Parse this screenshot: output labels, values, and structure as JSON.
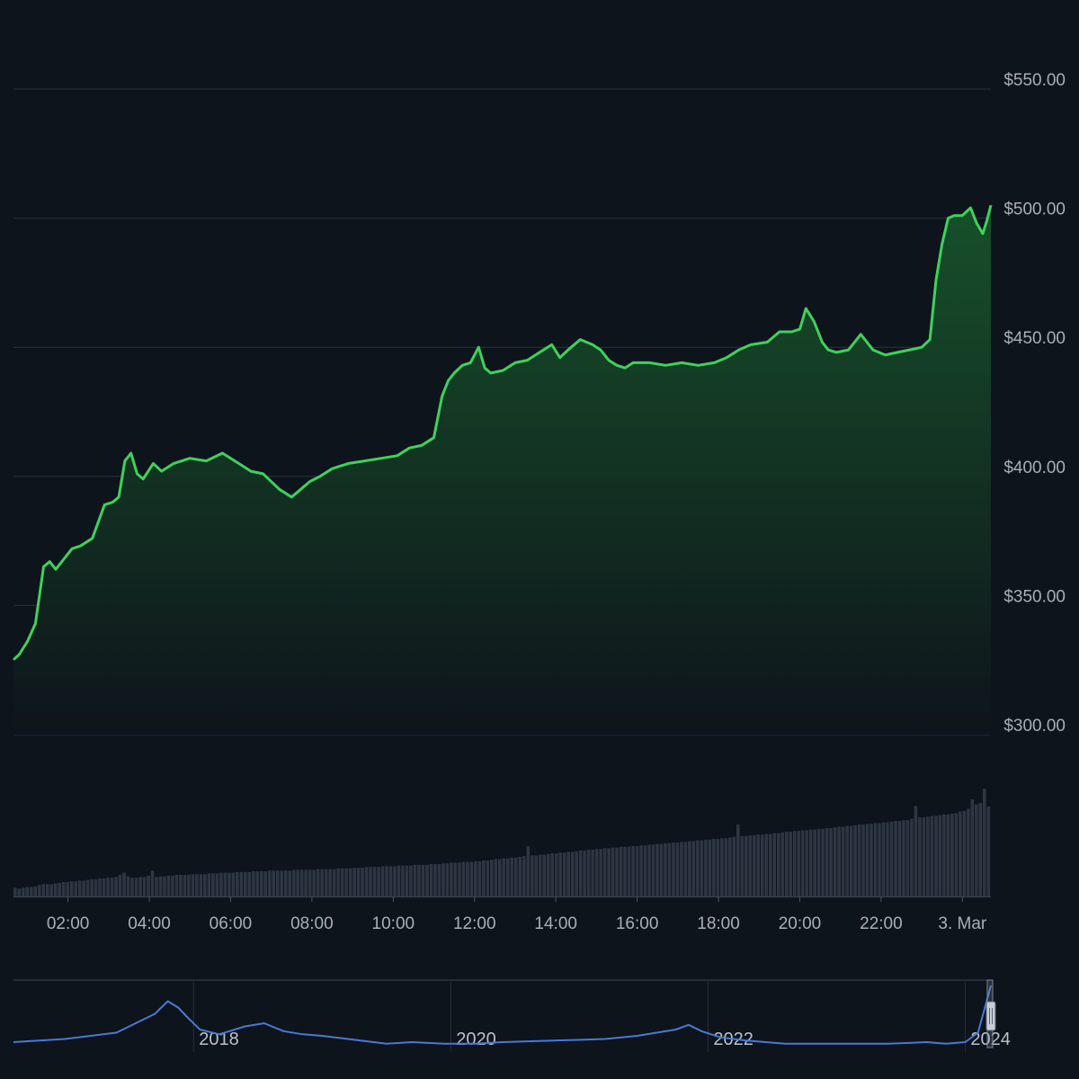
{
  "colors": {
    "background": "#0e141b",
    "price_line": "#3fd15c",
    "area_top": "#17502a",
    "area_bottom": "#0e141b",
    "gridline": "#2a323b",
    "volume_bar": "#2d3642",
    "navigator_line": "#4a78d6",
    "navigator_frame": "#3a4654",
    "axis_text": "#a7afbb"
  },
  "chart_data": [
    {
      "type": "line",
      "title": "",
      "x_tick_labels": [
        "02:00",
        "04:00",
        "06:00",
        "08:00",
        "10:00",
        "12:00",
        "14:00",
        "16:00",
        "18:00",
        "20:00",
        "22:00",
        "3. Mar"
      ],
      "y_tick_labels": [
        "$300.00",
        "$350.00",
        "$400.00",
        "$450.00",
        "$500.00",
        "$550.00"
      ],
      "y_ticks": [
        300,
        350,
        400,
        450,
        500,
        550
      ],
      "ylim": [
        300,
        550
      ],
      "xlim_hours": [
        0.66,
        24.7
      ],
      "grid": true,
      "legend": "none",
      "series": [
        {
          "x_hours": [
            0.66,
            0.8,
            1.0,
            1.2,
            1.4,
            1.55,
            1.7,
            1.9,
            2.1,
            2.3,
            2.6,
            2.9,
            3.1,
            3.25,
            3.4,
            3.55,
            3.7,
            3.85,
            4.1,
            4.3,
            4.6,
            5.0,
            5.4,
            5.8,
            6.2,
            6.5,
            6.8,
            7.2,
            7.5,
            7.8,
            7.95,
            8.2,
            8.5,
            8.9,
            9.3,
            9.7,
            10.1,
            10.4,
            10.7,
            11.0,
            11.2,
            11.35,
            11.5,
            11.7,
            11.9,
            12.1,
            12.25,
            12.4,
            12.7,
            13.0,
            13.3,
            13.6,
            13.9,
            14.1,
            14.3,
            14.6,
            14.9,
            15.1,
            15.3,
            15.5,
            15.7,
            15.9,
            16.3,
            16.7,
            17.1,
            17.5,
            17.9,
            18.2,
            18.5,
            18.8,
            19.2,
            19.5,
            19.8,
            20.0,
            20.15,
            20.35,
            20.55,
            20.7,
            20.9,
            21.2,
            21.5,
            21.8,
            22.1,
            22.4,
            22.7,
            23.0,
            23.2,
            23.35,
            23.5,
            23.65,
            23.8,
            24.0,
            24.2,
            24.35,
            24.5,
            24.6,
            24.7
          ],
          "values": [
            329,
            331,
            336,
            343,
            365,
            367,
            364,
            368,
            372,
            373,
            376,
            389,
            390,
            392,
            406,
            409,
            401,
            399,
            405,
            402,
            405,
            407,
            406,
            409,
            405,
            402,
            401,
            395,
            392,
            396,
            398,
            400,
            403,
            405,
            406,
            407,
            408,
            411,
            412,
            415,
            431,
            437,
            440,
            443,
            444,
            450,
            442,
            440,
            441,
            444,
            445,
            448,
            451,
            446,
            449,
            453,
            451,
            449,
            445,
            443,
            442,
            444,
            444,
            443,
            444,
            443,
            444,
            446,
            449,
            451,
            452,
            456,
            456,
            457,
            465,
            460,
            452,
            449,
            448,
            449,
            455,
            449,
            447,
            448,
            449,
            450,
            453,
            476,
            490,
            500,
            501,
            501,
            504,
            498,
            494,
            499,
            505
          ]
        }
      ]
    },
    {
      "type": "bar",
      "title": "",
      "series": [
        {
          "x_hours_start": 0.66,
          "x_hours_end": 24.7,
          "values": [
            12,
            11,
            12,
            13,
            13,
            14,
            16,
            17,
            17,
            17,
            18,
            19,
            20,
            20,
            21,
            21,
            22,
            22,
            23,
            24,
            24,
            25,
            25,
            26,
            26,
            27,
            30,
            33,
            28,
            26,
            26,
            27,
            27,
            29,
            36,
            27,
            28,
            28,
            29,
            29,
            30,
            30,
            30,
            30,
            31,
            31,
            31,
            31,
            32,
            32,
            32,
            33,
            33,
            33,
            33,
            34,
            34,
            34,
            34,
            35,
            35,
            35,
            35,
            36,
            36,
            36,
            36,
            36,
            36,
            37,
            37,
            37,
            37,
            37,
            37,
            38,
            38,
            38,
            38,
            38,
            39,
            39,
            39,
            39,
            40,
            40,
            40,
            41,
            41,
            41,
            41,
            42,
            42,
            42,
            42,
            43,
            43,
            43,
            43,
            44,
            44,
            44,
            44,
            45,
            45,
            45,
            46,
            46,
            47,
            47,
            47,
            48,
            48,
            48,
            49,
            49,
            50,
            50,
            51,
            52,
            52,
            53,
            53,
            54,
            54,
            55,
            56,
            70,
            57,
            57,
            58,
            58,
            59,
            60,
            60,
            61,
            61,
            62,
            62,
            63,
            64,
            64,
            65,
            65,
            66,
            66,
            67,
            67,
            68,
            68,
            69,
            69,
            69,
            70,
            70,
            71,
            71,
            72,
            72,
            73,
            73,
            74,
            74,
            75,
            75,
            76,
            76,
            77,
            77,
            78,
            78,
            79,
            79,
            80,
            80,
            81,
            81,
            82,
            83,
            100,
            84,
            84,
            85,
            85,
            86,
            86,
            87,
            87,
            88,
            88,
            89,
            90,
            90,
            91,
            91,
            92,
            92,
            93,
            93,
            94,
            94,
            95,
            95,
            96,
            97,
            97,
            98,
            98,
            99,
            100,
            100,
            101,
            101,
            102,
            102,
            103,
            103,
            104,
            105,
            105,
            106,
            106,
            108,
            126,
            110,
            110,
            111,
            112,
            112,
            113,
            114,
            114,
            115,
            116,
            118,
            119,
            122,
            135,
            128,
            130,
            150,
            125
          ]
        }
      ]
    },
    {
      "type": "area",
      "title": "",
      "x_tick_labels": [
        "2018",
        "2020",
        "2022",
        "2024"
      ],
      "x_ticks": [
        2018,
        2020,
        2022,
        2024
      ],
      "xlim": [
        2016.6,
        2024.2
      ],
      "series": [
        {
          "x": [
            2016.6,
            2016.8,
            2017.0,
            2017.2,
            2017.4,
            2017.55,
            2017.7,
            2017.8,
            2017.88,
            2017.95,
            2018.05,
            2018.2,
            2018.4,
            2018.55,
            2018.7,
            2018.85,
            2019.0,
            2019.2,
            2019.5,
            2019.7,
            2019.95,
            2020.2,
            2020.4,
            2020.8,
            2021.2,
            2021.45,
            2021.6,
            2021.75,
            2021.85,
            2021.95,
            2022.1,
            2022.3,
            2022.6,
            2023.0,
            2023.4,
            2023.7,
            2023.85,
            2024.0,
            2024.1,
            2024.2
          ],
          "values": [
            4,
            5,
            6,
            8,
            10,
            16,
            22,
            30,
            26,
            20,
            12,
            9,
            14,
            16,
            11,
            9,
            8,
            6,
            3,
            4,
            3,
            3,
            4,
            5,
            6,
            8,
            10,
            12,
            15,
            11,
            7,
            5,
            3,
            3,
            3,
            4,
            3,
            4,
            10,
            40
          ]
        }
      ]
    }
  ]
}
